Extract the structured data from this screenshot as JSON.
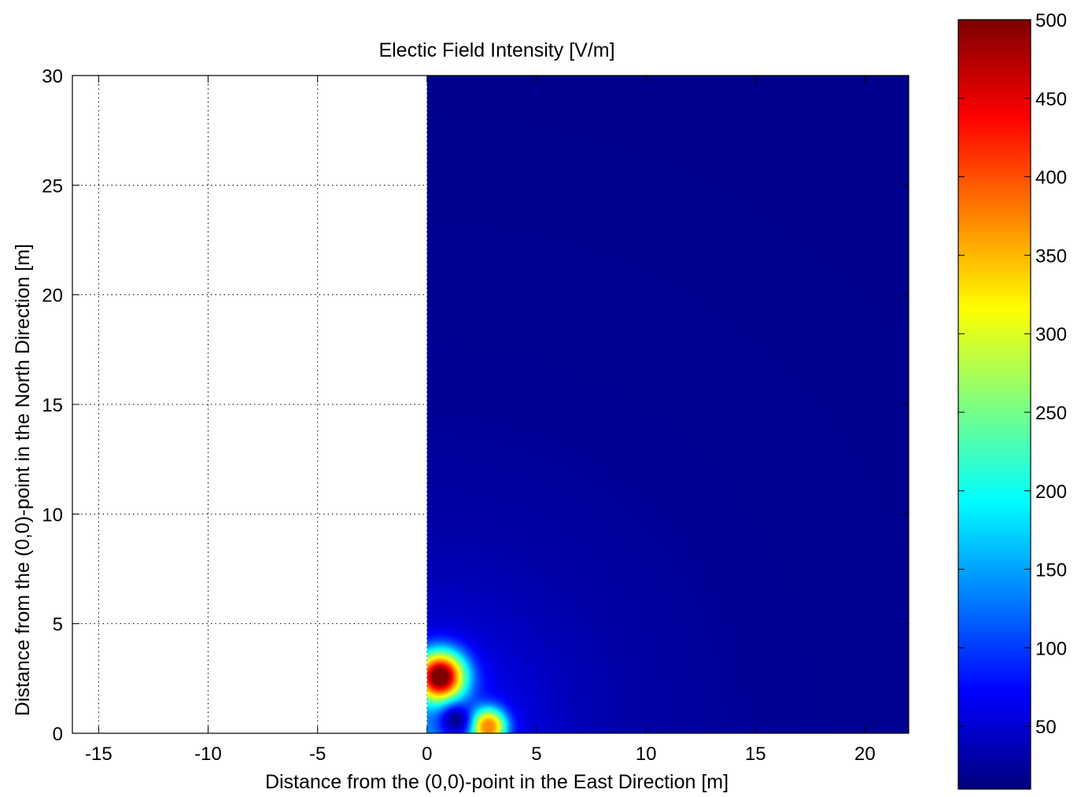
{
  "chart_data": {
    "type": "heatmap",
    "title": "Electic Field Intensity [V/m]",
    "xlabel": "Distance from the (0,0)-point in the East Direction [m]",
    "ylabel": "Distance from the (0,0)-point in the North Direction [m]",
    "xlim": [
      -16.2,
      22
    ],
    "ylim": [
      0,
      30
    ],
    "xticks": [
      -15,
      -10,
      -5,
      0,
      5,
      10,
      15,
      20
    ],
    "xtick_labels": [
      "-15",
      "-10",
      "-5",
      "0",
      "5",
      "10",
      "15",
      "20"
    ],
    "yticks": [
      0,
      5,
      10,
      15,
      20,
      25,
      30
    ],
    "ytick_labels": [
      "0",
      "5",
      "10",
      "15",
      "20",
      "25",
      "30"
    ],
    "grid": "dotted",
    "colormap": "jet",
    "colorbar": {
      "range": [
        10,
        500
      ],
      "ticks": [
        50,
        100,
        150,
        200,
        250,
        300,
        350,
        400,
        450,
        500
      ],
      "tick_labels": [
        "50",
        "100",
        "150",
        "200",
        "250",
        "300",
        "350",
        "400",
        "450",
        "500"
      ]
    },
    "field_region": {
      "x": [
        0,
        22
      ],
      "y": [
        0,
        30
      ]
    },
    "hotspots": [
      {
        "x": 0.6,
        "y": 2.6,
        "value": 460
      },
      {
        "x": 2.8,
        "y": 0.3,
        "value": 380
      }
    ],
    "background_value": 15
  }
}
